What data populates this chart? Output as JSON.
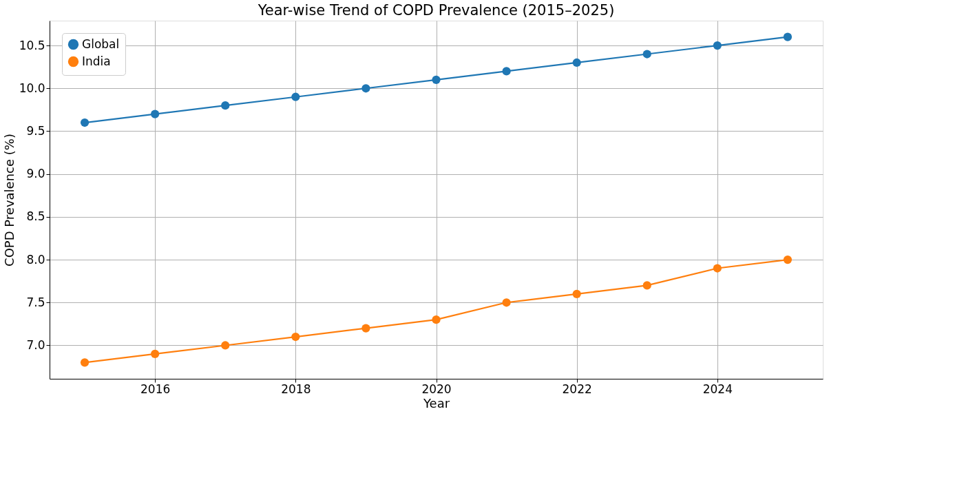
{
  "chart_data": {
    "type": "line",
    "title": "Year-wise Trend of COPD Prevalence (2015–2025)",
    "xlabel": "Year",
    "ylabel": "COPD Prevalence (%)",
    "x": [
      2015,
      2016,
      2017,
      2018,
      2019,
      2020,
      2021,
      2022,
      2023,
      2024,
      2025
    ],
    "series": [
      {
        "name": "Global",
        "color": "#1f77b4",
        "values": [
          9.6,
          9.7,
          9.8,
          9.9,
          10.0,
          10.1,
          10.2,
          10.3,
          10.4,
          10.5,
          10.6
        ]
      },
      {
        "name": "India",
        "color": "#ff7f0e",
        "values": [
          6.8,
          6.9,
          7.0,
          7.1,
          7.2,
          7.3,
          7.5,
          7.6,
          7.7,
          7.9,
          8.0
        ]
      }
    ],
    "xlim": [
      2014.5,
      2025.5
    ],
    "xticks": [
      2016,
      2018,
      2020,
      2022,
      2024
    ],
    "ylim": [
      6.61,
      10.79
    ],
    "yticks": [
      {
        "value": 7.0,
        "label": "7.0"
      },
      {
        "value": 7.5,
        "label": "7.5"
      },
      {
        "value": 8.0,
        "label": "8.0"
      },
      {
        "value": 8.5,
        "label": "8.5"
      },
      {
        "value": 9.0,
        "label": "9.0"
      },
      {
        "value": 9.5,
        "label": "9.5"
      },
      {
        "value": 10.0,
        "label": "10.0"
      },
      {
        "value": 10.5,
        "label": "10.5"
      }
    ],
    "grid": true,
    "legend": "top left",
    "marker": "circle",
    "line_style": "solid"
  }
}
